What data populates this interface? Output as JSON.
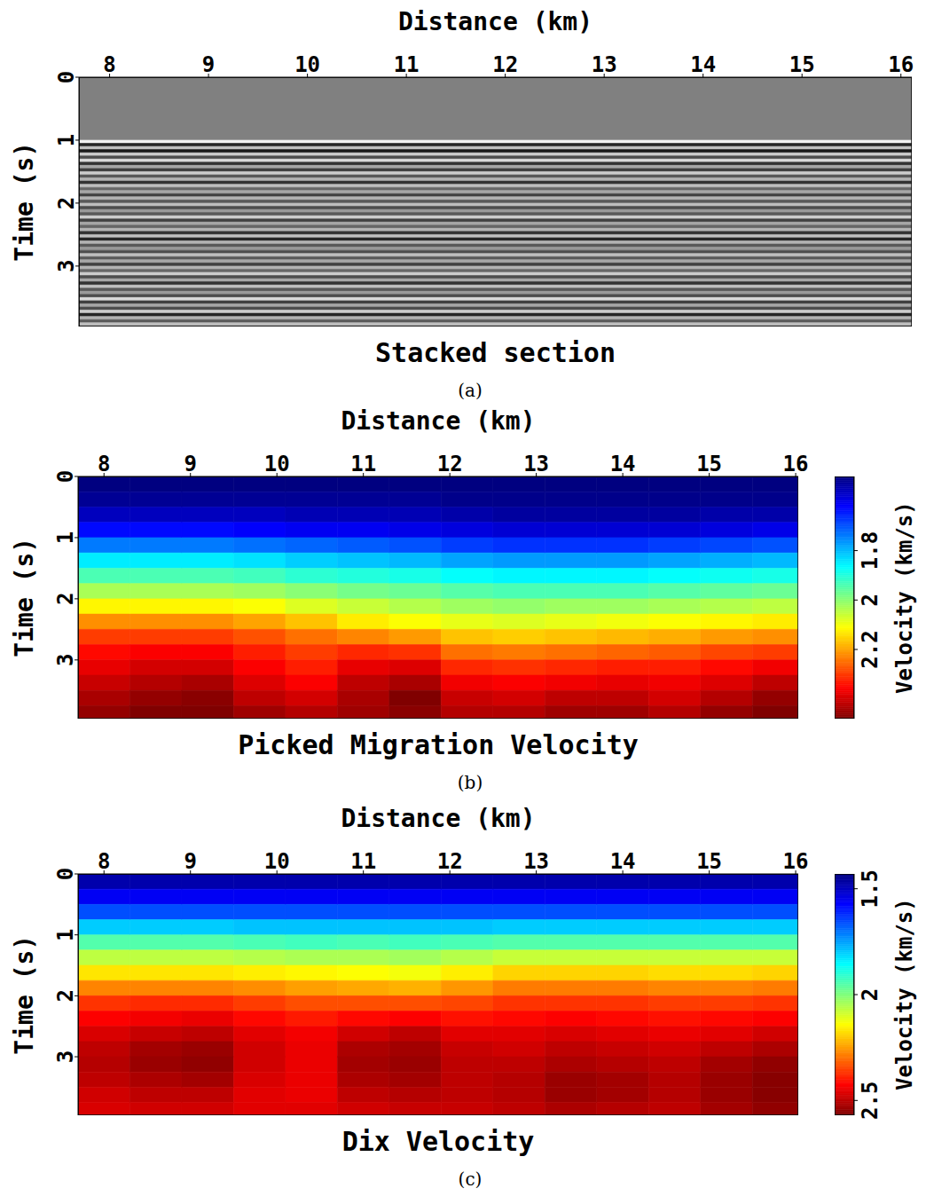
{
  "chart_data": [
    {
      "type": "heatmap",
      "title": "Stacked section",
      "caption": "(a)",
      "x_label": "Distance (km)",
      "y_label": "Time (s)",
      "color": "gray",
      "xlim": [
        7.69,
        16.11
      ],
      "ylim": [
        0,
        3.96
      ],
      "xticks": [
        8,
        9,
        10,
        11,
        12,
        13,
        14,
        15,
        16
      ],
      "yticks": [
        0,
        1,
        2,
        3
      ],
      "zlim": [
        -1,
        1
      ],
      "x_edges": [
        7.69,
        16.11
      ],
      "y_edges": [
        0,
        1,
        1.05,
        1.1,
        1.15,
        1.2,
        1.25,
        1.3,
        1.35,
        1.4,
        1.45,
        1.5,
        1.55,
        1.6,
        1.65,
        1.7,
        1.75,
        1.8,
        1.85,
        1.9,
        1.95,
        2,
        2.05,
        2.1,
        2.15,
        2.2,
        2.25,
        2.3,
        2.35,
        2.4,
        2.45,
        2.5,
        2.55,
        2.6,
        2.65,
        2.7,
        2.75,
        2.8,
        2.85,
        2.9,
        2.95,
        3,
        3.05,
        3.1,
        3.15,
        3.2,
        3.25,
        3.3,
        3.35,
        3.4,
        3.45,
        3.5,
        3.55,
        3.6,
        3.65,
        3.7,
        3.75,
        3.8,
        3.85,
        3.9,
        3.95,
        4
      ],
      "values": [
        [
          0,
          0.9,
          -0.7,
          0.5,
          -0.8,
          0.6,
          -0.4,
          0.7,
          -0.6,
          0.3,
          -0.5,
          0.6,
          -0.3,
          0.4,
          -0.6,
          0.5,
          -0.2,
          0.3,
          -0.5,
          0.4,
          -0.3,
          0.5,
          -0.4,
          0.2,
          -0.3,
          0.6,
          -0.5,
          0.3,
          -0.2,
          0.4,
          -0.6,
          0.5,
          -0.7,
          0.4,
          -0.3,
          0.2,
          -0.4,
          0.5,
          -0.3,
          0.3,
          -0.5,
          0.4,
          -0.2,
          0.6,
          -0.4,
          0.3,
          -0.6,
          0.5,
          -0.3,
          0.2,
          -0.4,
          0.7,
          -0.5,
          0.3,
          -0.4,
          0.6,
          -0.7,
          0.4,
          -0.3,
          0.5,
          -0.2
        ]
      ]
    },
    {
      "type": "heatmap",
      "title": "Picked Migration Velocity",
      "caption": "(b)",
      "x_label": "Distance (km)",
      "y_label": "Time (s)",
      "color": "jet",
      "xlim": [
        7.7,
        16.03
      ],
      "ylim": [
        0,
        3.96
      ],
      "xticks": [
        8,
        9,
        10,
        11,
        12,
        13,
        14,
        15,
        16
      ],
      "yticks": [
        0,
        1,
        2,
        3
      ],
      "zlim": [
        1.5,
        2.48
      ],
      "zticks": [
        1.8,
        2,
        2.2
      ],
      "z_label": "Velocity (km/s)",
      "x_edges": [
        7.7,
        8.3,
        8.9,
        9.5,
        10.1,
        10.7,
        11.3,
        11.9,
        12.5,
        13.1,
        13.7,
        14.3,
        14.9,
        15.5,
        16.1
      ],
      "y_edges": [
        0,
        0.25,
        0.5,
        0.75,
        1,
        1.25,
        1.5,
        1.75,
        2,
        2.25,
        2.5,
        2.75,
        3,
        3.25,
        3.5,
        3.75,
        4
      ],
      "values": [
        [
          1.5,
          1.52,
          1.56,
          1.63,
          1.74,
          1.85,
          1.94,
          2.03,
          2.12,
          2.22,
          2.3,
          2.35,
          2.38,
          2.41,
          2.44,
          2.46
        ],
        [
          1.5,
          1.52,
          1.56,
          1.63,
          1.74,
          1.85,
          1.94,
          2.03,
          2.12,
          2.22,
          2.3,
          2.36,
          2.4,
          2.43,
          2.46,
          2.48
        ],
        [
          1.5,
          1.52,
          1.56,
          1.63,
          1.74,
          1.85,
          1.94,
          2.03,
          2.12,
          2.22,
          2.3,
          2.36,
          2.4,
          2.44,
          2.47,
          2.48
        ],
        [
          1.5,
          1.52,
          1.56,
          1.62,
          1.73,
          1.84,
          1.93,
          2.02,
          2.11,
          2.2,
          2.28,
          2.33,
          2.36,
          2.39,
          2.42,
          2.45
        ],
        [
          1.5,
          1.52,
          1.55,
          1.61,
          1.72,
          1.82,
          1.91,
          2.0,
          2.08,
          2.17,
          2.25,
          2.3,
          2.33,
          2.36,
          2.4,
          2.43
        ],
        [
          1.5,
          1.52,
          1.55,
          1.61,
          1.71,
          1.81,
          1.9,
          1.98,
          2.06,
          2.13,
          2.23,
          2.32,
          2.38,
          2.42,
          2.44,
          2.45
        ],
        [
          1.5,
          1.52,
          1.55,
          1.6,
          1.7,
          1.8,
          1.89,
          1.97,
          2.04,
          2.11,
          2.21,
          2.31,
          2.39,
          2.44,
          2.48,
          2.47
        ],
        [
          1.5,
          1.51,
          1.54,
          1.59,
          1.68,
          1.78,
          1.87,
          1.95,
          2.02,
          2.09,
          2.17,
          2.25,
          2.32,
          2.37,
          2.41,
          2.43
        ],
        [
          1.5,
          1.51,
          1.53,
          1.58,
          1.67,
          1.77,
          1.86,
          1.94,
          2.01,
          2.08,
          2.16,
          2.24,
          2.31,
          2.36,
          2.4,
          2.43
        ],
        [
          1.5,
          1.51,
          1.53,
          1.58,
          1.67,
          1.77,
          1.86,
          1.94,
          2.02,
          2.09,
          2.17,
          2.25,
          2.32,
          2.37,
          2.42,
          2.45
        ],
        [
          1.5,
          1.51,
          1.53,
          1.58,
          1.67,
          1.77,
          1.86,
          1.94,
          2.02,
          2.1,
          2.18,
          2.26,
          2.33,
          2.38,
          2.42,
          2.45
        ],
        [
          1.5,
          1.51,
          1.53,
          1.58,
          1.68,
          1.78,
          1.87,
          1.95,
          2.03,
          2.11,
          2.19,
          2.27,
          2.33,
          2.37,
          2.4,
          2.43
        ],
        [
          1.5,
          1.51,
          1.54,
          1.59,
          1.69,
          1.79,
          1.88,
          1.96,
          2.04,
          2.12,
          2.21,
          2.29,
          2.35,
          2.39,
          2.43,
          2.46
        ],
        [
          1.5,
          1.51,
          1.54,
          1.6,
          1.7,
          1.8,
          1.89,
          1.97,
          2.05,
          2.13,
          2.22,
          2.3,
          2.37,
          2.42,
          2.46,
          2.48
        ]
      ]
    },
    {
      "type": "heatmap",
      "title": "Dix Velocity",
      "caption": "(c)",
      "x_label": "Distance (km)",
      "y_label": "Time (s)",
      "color": "jet",
      "xlim": [
        7.7,
        16.03
      ],
      "ylim": [
        0,
        3.96
      ],
      "xticks": [
        8,
        9,
        10,
        11,
        12,
        13,
        14,
        15,
        16
      ],
      "yticks": [
        0,
        1,
        2,
        3
      ],
      "zlim": [
        1.43,
        2.57
      ],
      "zticks": [
        1.5,
        2,
        2.5
      ],
      "z_label": "Velocity (km/s)",
      "x_edges": [
        7.7,
        8.3,
        8.9,
        9.5,
        10.1,
        10.7,
        11.3,
        11.9,
        12.5,
        13.1,
        13.7,
        14.3,
        14.9,
        15.5,
        16.1
      ],
      "y_edges": [
        0,
        0.25,
        0.5,
        0.75,
        1,
        1.25,
        1.5,
        1.75,
        2,
        2.25,
        2.5,
        2.75,
        3,
        3.25,
        3.5,
        3.75,
        4
      ],
      "values": [
        [
          1.48,
          1.56,
          1.66,
          1.8,
          1.95,
          2.07,
          2.17,
          2.28,
          2.37,
          2.43,
          2.47,
          2.5,
          2.51,
          2.5,
          2.48,
          2.47
        ],
        [
          1.48,
          1.56,
          1.66,
          1.8,
          1.95,
          2.07,
          2.17,
          2.28,
          2.38,
          2.44,
          2.49,
          2.53,
          2.54,
          2.52,
          2.5,
          2.48
        ],
        [
          1.48,
          1.56,
          1.66,
          1.8,
          1.95,
          2.07,
          2.17,
          2.28,
          2.38,
          2.45,
          2.5,
          2.54,
          2.55,
          2.53,
          2.5,
          2.48
        ],
        [
          1.48,
          1.56,
          1.66,
          1.79,
          1.94,
          2.06,
          2.16,
          2.27,
          2.36,
          2.42,
          2.46,
          2.48,
          2.48,
          2.47,
          2.46,
          2.46
        ],
        [
          1.48,
          1.56,
          1.66,
          1.79,
          1.93,
          2.05,
          2.15,
          2.25,
          2.34,
          2.4,
          2.44,
          2.45,
          2.45,
          2.45,
          2.45,
          2.46
        ],
        [
          1.48,
          1.56,
          1.66,
          1.79,
          1.94,
          2.05,
          2.14,
          2.24,
          2.34,
          2.42,
          2.48,
          2.52,
          2.53,
          2.52,
          2.5,
          2.48
        ],
        [
          1.48,
          1.56,
          1.66,
          1.79,
          1.93,
          2.04,
          2.13,
          2.23,
          2.34,
          2.43,
          2.5,
          2.53,
          2.54,
          2.53,
          2.51,
          2.49
        ],
        [
          1.48,
          1.56,
          1.66,
          1.79,
          1.94,
          2.06,
          2.16,
          2.26,
          2.35,
          2.41,
          2.46,
          2.49,
          2.5,
          2.5,
          2.5,
          2.49
        ],
        [
          1.48,
          1.56,
          1.66,
          1.8,
          1.95,
          2.08,
          2.19,
          2.29,
          2.37,
          2.42,
          2.46,
          2.48,
          2.5,
          2.51,
          2.51,
          2.5
        ],
        [
          1.48,
          1.56,
          1.66,
          1.8,
          1.95,
          2.08,
          2.19,
          2.29,
          2.37,
          2.43,
          2.47,
          2.5,
          2.52,
          2.54,
          2.54,
          2.52
        ],
        [
          1.48,
          1.56,
          1.66,
          1.8,
          1.95,
          2.08,
          2.19,
          2.29,
          2.37,
          2.42,
          2.46,
          2.49,
          2.51,
          2.53,
          2.53,
          2.51
        ],
        [
          1.48,
          1.56,
          1.66,
          1.8,
          1.95,
          2.08,
          2.18,
          2.28,
          2.36,
          2.41,
          2.45,
          2.48,
          2.5,
          2.51,
          2.51,
          2.5
        ],
        [
          1.48,
          1.56,
          1.66,
          1.8,
          1.95,
          2.08,
          2.18,
          2.28,
          2.36,
          2.42,
          2.46,
          2.5,
          2.53,
          2.54,
          2.54,
          2.53
        ],
        [
          1.48,
          1.56,
          1.66,
          1.8,
          1.95,
          2.08,
          2.19,
          2.29,
          2.37,
          2.43,
          2.48,
          2.52,
          2.55,
          2.56,
          2.56,
          2.55
        ]
      ]
    }
  ]
}
